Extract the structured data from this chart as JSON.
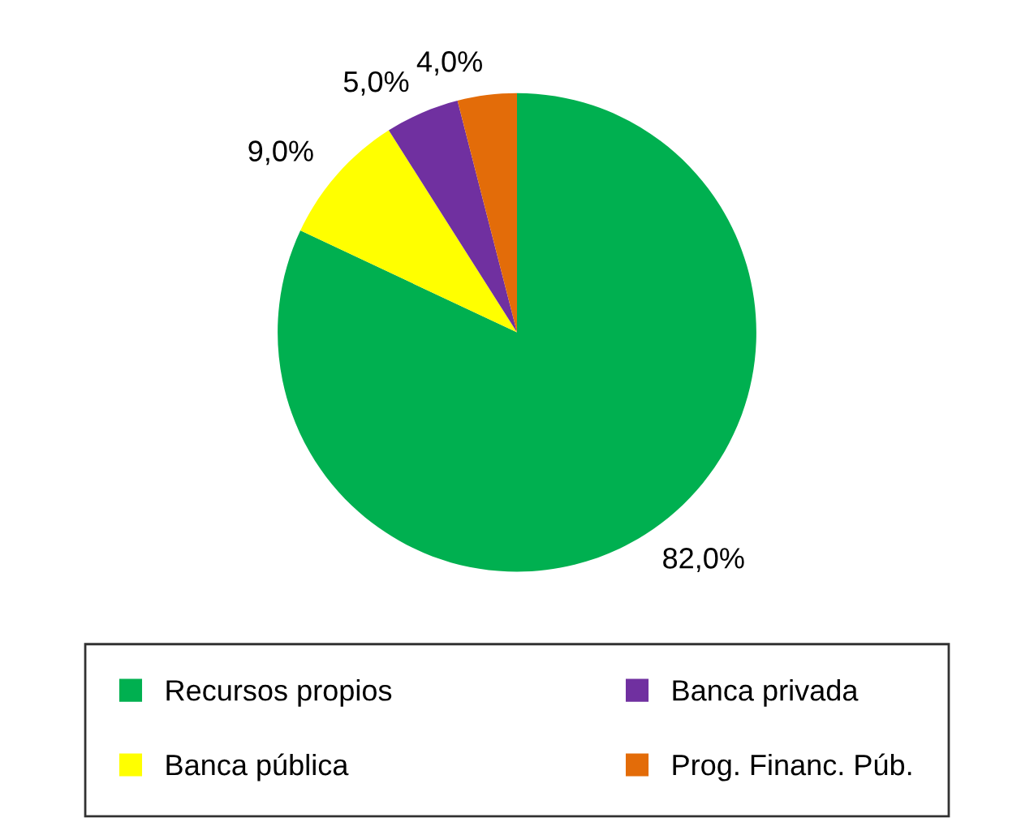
{
  "chart_data": {
    "type": "pie",
    "categories": [
      "Recursos propios",
      "Banca pública",
      "Banca privada",
      "Prog. Financ. Púb."
    ],
    "values": [
      82,
      9,
      5,
      4
    ],
    "value_labels": [
      "82,0%",
      "9,0%",
      "5,0%",
      "4,0%"
    ],
    "colors": [
      "#00b050",
      "#ffff00",
      "#7030a0",
      "#e36c09"
    ],
    "legend": "bottom"
  }
}
